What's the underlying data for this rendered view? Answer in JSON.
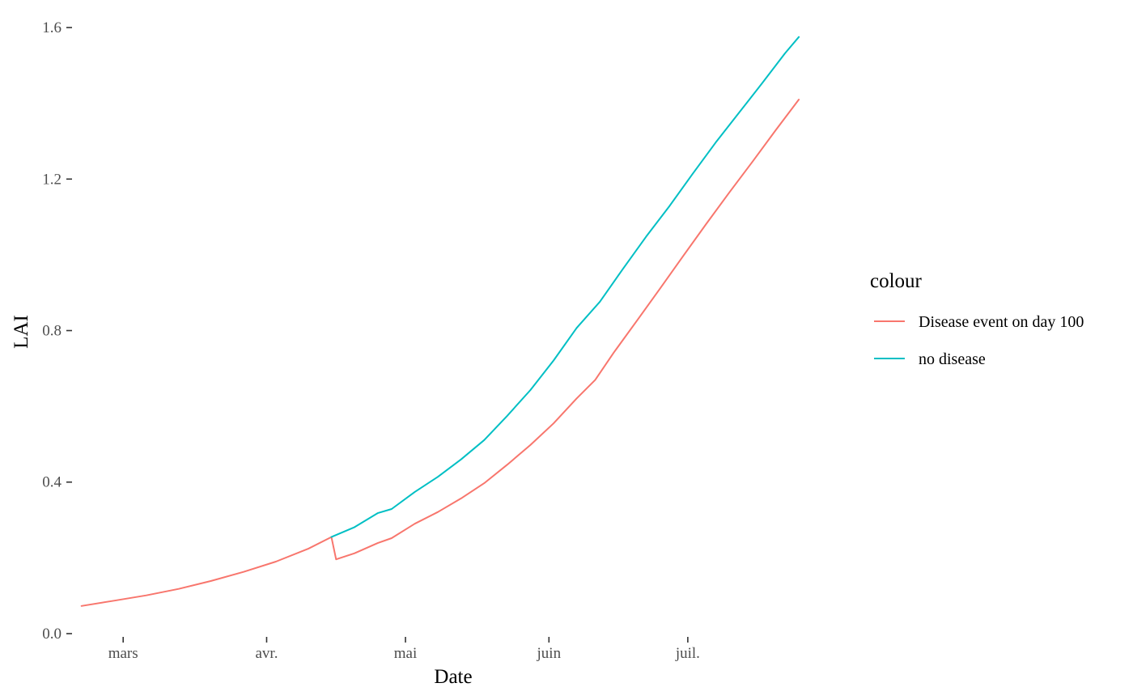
{
  "chart_data": {
    "type": "line",
    "title": "",
    "xlabel": "Date",
    "ylabel": "LAI",
    "x_axis": {
      "type": "date",
      "range": [
        "2021-02-19",
        "2021-07-29"
      ],
      "ticks": [
        {
          "date": "2021-03-01",
          "label": "mars"
        },
        {
          "date": "2021-04-01",
          "label": "avr."
        },
        {
          "date": "2021-05-01",
          "label": "mai"
        },
        {
          "date": "2021-06-01",
          "label": "juin"
        },
        {
          "date": "2021-07-01",
          "label": "juil."
        }
      ]
    },
    "y_axis": {
      "range": [
        -0.015,
        1.63
      ],
      "ticks": [
        {
          "value": 0.0,
          "label": "0.0"
        },
        {
          "value": 0.4,
          "label": "0.4"
        },
        {
          "value": 0.8,
          "label": "0.8"
        },
        {
          "value": 1.2,
          "label": "1.2"
        },
        {
          "value": 1.6,
          "label": "1.6"
        }
      ]
    },
    "grid": false,
    "legend": {
      "title": "colour",
      "position": "right",
      "entries": [
        {
          "label": "Disease event on day 100",
          "color": "#F8766D"
        },
        {
          "label": "no disease",
          "color": "#00BFC4"
        }
      ]
    },
    "series": [
      {
        "name": "Disease event on day 100",
        "color": "#F8766D",
        "points": [
          [
            "2021-02-20",
            0.073
          ],
          [
            "2021-02-27",
            0.087
          ],
          [
            "2021-03-06",
            0.101
          ],
          [
            "2021-03-13",
            0.118
          ],
          [
            "2021-03-20",
            0.139
          ],
          [
            "2021-03-27",
            0.163
          ],
          [
            "2021-04-03",
            0.19
          ],
          [
            "2021-04-10",
            0.224
          ],
          [
            "2021-04-15",
            0.255
          ],
          [
            "2021-04-16",
            0.196
          ],
          [
            "2021-04-20",
            0.212
          ],
          [
            "2021-04-25",
            0.239
          ],
          [
            "2021-04-28",
            0.252
          ],
          [
            "2021-05-03",
            0.29
          ],
          [
            "2021-05-08",
            0.321
          ],
          [
            "2021-05-13",
            0.357
          ],
          [
            "2021-05-18",
            0.397
          ],
          [
            "2021-05-23",
            0.446
          ],
          [
            "2021-05-28",
            0.498
          ],
          [
            "2021-06-02",
            0.555
          ],
          [
            "2021-06-07",
            0.621
          ],
          [
            "2021-06-11",
            0.67
          ],
          [
            "2021-06-15",
            0.742
          ],
          [
            "2021-06-20",
            0.826
          ],
          [
            "2021-06-25",
            0.911
          ],
          [
            "2021-06-30",
            0.997
          ],
          [
            "2021-07-05",
            1.082
          ],
          [
            "2021-07-10",
            1.165
          ],
          [
            "2021-07-15",
            1.246
          ],
          [
            "2021-07-20",
            1.329
          ],
          [
            "2021-07-25",
            1.41
          ]
        ]
      },
      {
        "name": "no disease",
        "color": "#00BFC4",
        "points": [
          [
            "2021-04-15",
            0.255
          ],
          [
            "2021-04-20",
            0.281
          ],
          [
            "2021-04-25",
            0.318
          ],
          [
            "2021-04-28",
            0.329
          ],
          [
            "2021-05-03",
            0.374
          ],
          [
            "2021-05-08",
            0.414
          ],
          [
            "2021-05-13",
            0.46
          ],
          [
            "2021-05-18",
            0.511
          ],
          [
            "2021-05-23",
            0.575
          ],
          [
            "2021-05-28",
            0.643
          ],
          [
            "2021-06-02",
            0.721
          ],
          [
            "2021-06-07",
            0.807
          ],
          [
            "2021-06-12",
            0.876
          ],
          [
            "2021-06-17",
            0.963
          ],
          [
            "2021-06-22",
            1.048
          ],
          [
            "2021-06-27",
            1.128
          ],
          [
            "2021-07-02",
            1.213
          ],
          [
            "2021-07-07",
            1.296
          ],
          [
            "2021-07-12",
            1.374
          ],
          [
            "2021-07-17",
            1.452
          ],
          [
            "2021-07-22",
            1.532
          ],
          [
            "2021-07-25",
            1.575
          ]
        ]
      }
    ]
  }
}
